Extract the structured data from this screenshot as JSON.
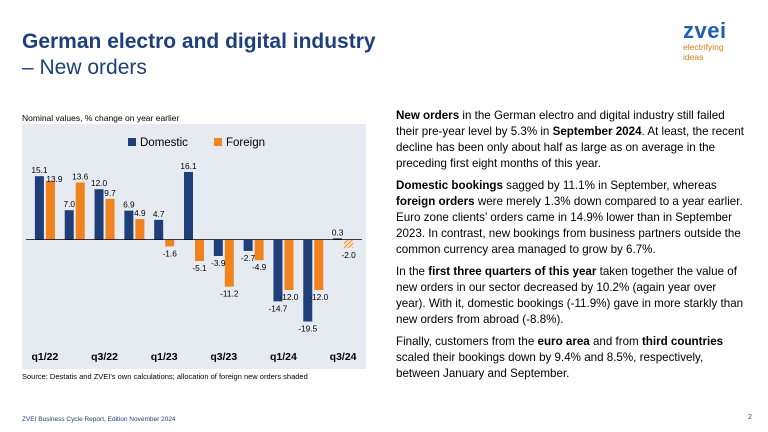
{
  "header": {
    "title": "German electro and digital industry",
    "subtitle": "– New orders"
  },
  "logo": {
    "word": "zvei",
    "tagline_1": "electrifying",
    "tagline_2": "ideas"
  },
  "chart_note": "Nominal values, % change on year earlier",
  "source": "Source: Destatis and ZVEI's own calculations; allocation of foreign new orders shaded",
  "footer": "ZVEI Business Cycle Report, Edition November 2024",
  "page_number": "2",
  "colors": {
    "domestic": "#1f3f7a",
    "foreign": "#f0831e",
    "chart_bg": "#e6eaf1"
  },
  "chart_data": {
    "type": "bar",
    "ylabel": "",
    "xlabel": "",
    "legend_position": "top",
    "grid": false,
    "ylim": [
      -22,
      18
    ],
    "categories": [
      "q1/22",
      "",
      "q3/22",
      "",
      "q1/23",
      "",
      "q3/23",
      "",
      "q1/24",
      "",
      "q3/24"
    ],
    "series": [
      {
        "name": "Domestic",
        "values": [
          15.1,
          7.0,
          12.0,
          6.9,
          4.7,
          16.1,
          -3.9,
          -2.7,
          -14.7,
          -19.5,
          0.3
        ]
      },
      {
        "name": "Foreign",
        "values": [
          13.9,
          13.6,
          9.7,
          4.9,
          -1.6,
          -5.1,
          -11.2,
          -4.9,
          -12.0,
          -12.0,
          -2.0
        ]
      }
    ],
    "labels": {
      "domestic": [
        "15.1",
        "7.0",
        "12.0",
        "6.9",
        "4.7",
        "16.1",
        "-3.9",
        "-2.7",
        "-14.7",
        "-19.5",
        "0.3"
      ],
      "foreign": [
        "13.9",
        "13.6",
        "9.7",
        "4.9",
        "-1.6",
        "-5.1",
        "-11.2",
        "-4.9",
        "-12.0",
        "-12.0",
        "-2.0"
      ]
    },
    "shaded_foreign_index": 10
  },
  "body": {
    "p1": [
      {
        "t": "New orders",
        "b": true
      },
      {
        "t": " in the German electro and digital industry still failed their pre-year level by 5.3% in ",
        "b": false
      },
      {
        "t": "September 2024",
        "b": true
      },
      {
        "t": ". At least, the recent decline has been only about half as large as on average in the preceding first eight months of this year.",
        "b": false
      }
    ],
    "p2": [
      {
        "t": "Domestic bookings",
        "b": true
      },
      {
        "t": " sagged by 11.1% in September, whereas ",
        "b": false
      },
      {
        "t": "foreign orders",
        "b": true
      },
      {
        "t": " were merely 1.3% down compared to a year earlier. Euro zone clients’ orders came in 14.9% lower than in September 2023. In contrast, new bookings from business partners outside the common currency area managed to grow by 6.7%.",
        "b": false
      }
    ],
    "p3": [
      {
        "t": "In the ",
        "b": false
      },
      {
        "t": "first three quarters of this year",
        "b": true
      },
      {
        "t": " taken together the value of new orders in our sector decreased by 10.2% (again year over year). With it, domestic bookings (-11.9%) gave in more starkly than new orders from abroad (-8.8%).",
        "b": false
      }
    ],
    "p4": [
      {
        "t": "Finally, customers from the ",
        "b": false
      },
      {
        "t": "euro area",
        "b": true
      },
      {
        "t": " and from ",
        "b": false
      },
      {
        "t": "third countries",
        "b": true
      },
      {
        "t": " scaled their bookings down by 9.4% and 8.5%, respectively, between January and September.",
        "b": false
      }
    ]
  }
}
